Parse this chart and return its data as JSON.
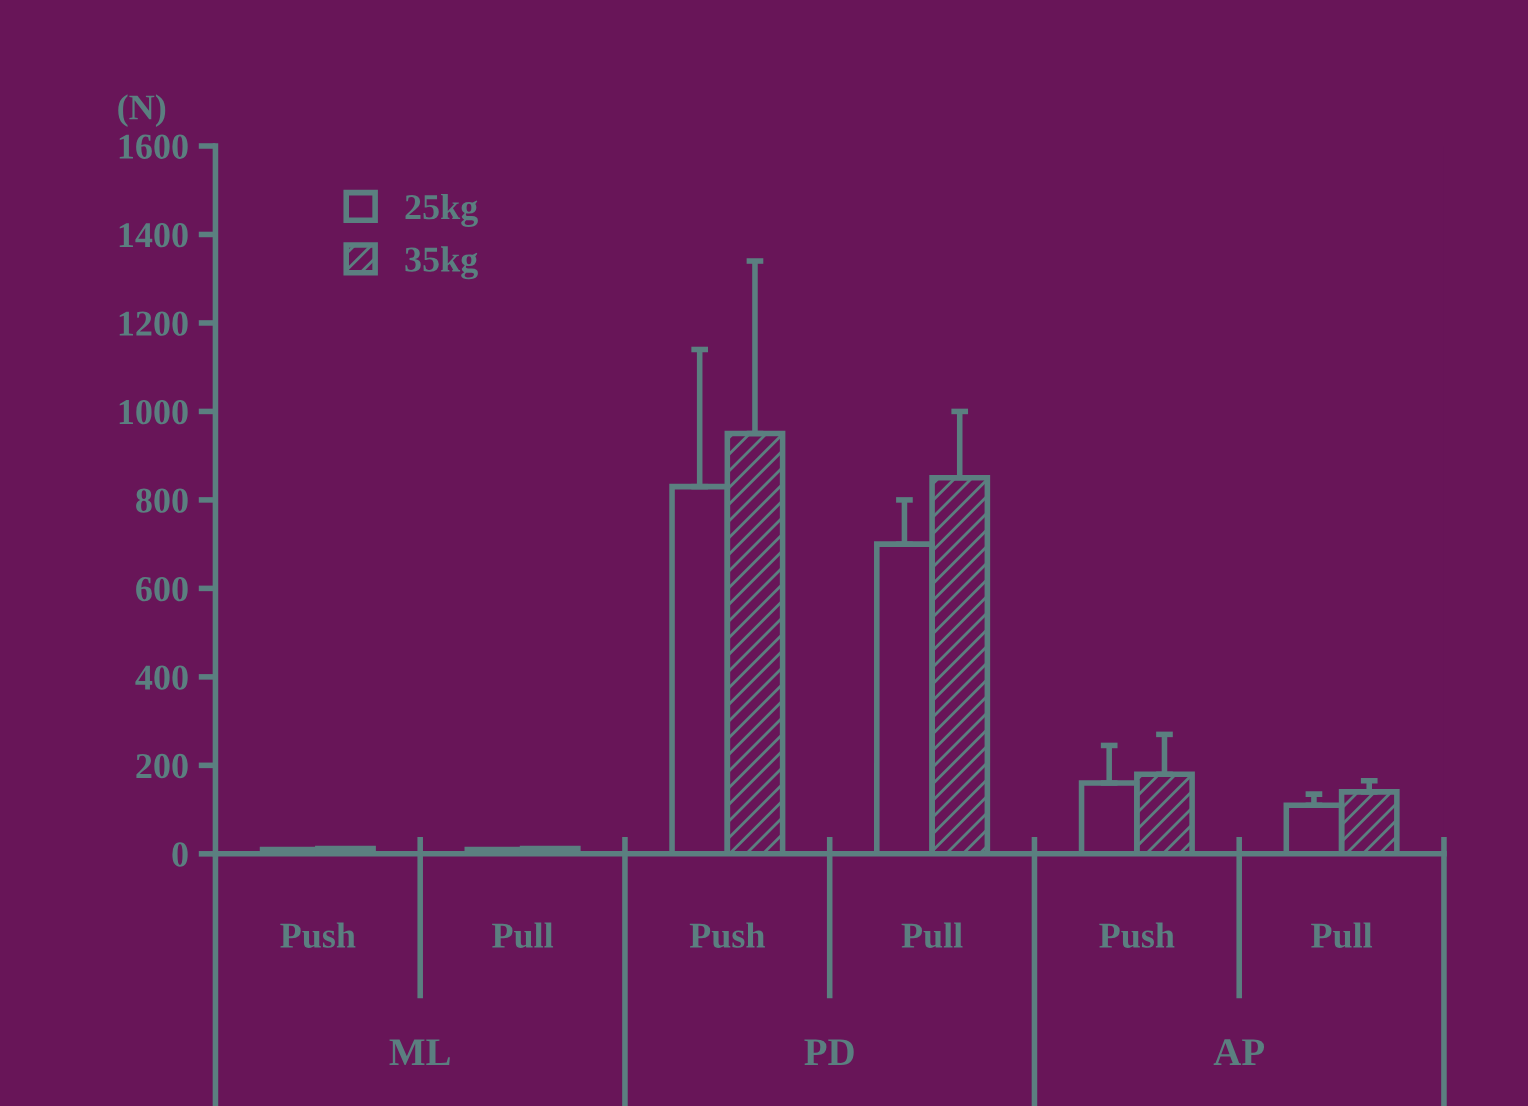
{
  "chart_data": {
    "type": "bar",
    "ylabel": "(N)",
    "categories": [
      "Push",
      "Pull",
      "Push",
      "Pull",
      "Push",
      "Pull"
    ],
    "series": [
      {
        "name": "25kg",
        "color": "#5b7f80",
        "values": [
          10,
          10,
          830,
          700,
          160,
          110
        ],
        "errors": [
          null,
          null,
          310,
          100,
          85,
          25
        ]
      },
      {
        "name": "35kg",
        "color": "#5b7f80",
        "values": [
          12,
          12,
          950,
          850,
          180,
          140
        ],
        "errors": [
          null,
          null,
          390,
          150,
          90,
          25
        ]
      }
    ],
    "annotations": [
      "ML",
      "PD",
      "AP"
    ],
    "ylim": [
      0,
      1600
    ],
    "yticks": [
      0,
      200,
      400,
      600,
      800,
      1000,
      1200,
      1400,
      1600
    ],
    "grid": false,
    "legend": "top left"
  }
}
